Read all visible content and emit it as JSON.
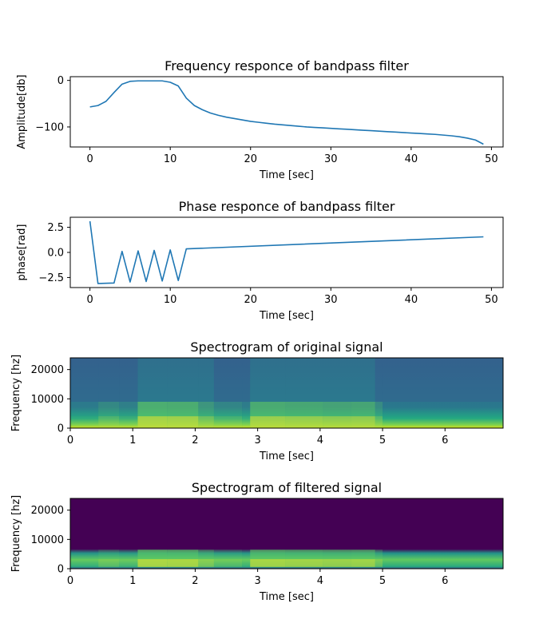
{
  "chart_data": [
    {
      "type": "line",
      "title": "Frequency responce of bandpass filter",
      "xlabel": "Time [sec]",
      "ylabel": "Amplitude[db]",
      "xlim": [
        -2.45,
        51.45
      ],
      "ylim": [
        -143,
        8
      ],
      "xticks": [
        0,
        10,
        20,
        30,
        40,
        50
      ],
      "yticks": [
        0,
        -100
      ],
      "ytick_labels": [
        "0",
        "−100"
      ],
      "grid": false,
      "color": "#1f77b4",
      "x": [
        0,
        1,
        2,
        3,
        4,
        5,
        6,
        7,
        8,
        9,
        10,
        11,
        12,
        13,
        14,
        15,
        16,
        17,
        18,
        19,
        20,
        21,
        22,
        23,
        24,
        25,
        26,
        27,
        28,
        29,
        30,
        31,
        32,
        33,
        34,
        35,
        36,
        37,
        38,
        39,
        40,
        41,
        42,
        43,
        44,
        45,
        46,
        47,
        48,
        49
      ],
      "y": [
        -57,
        -54,
        -45,
        -26,
        -8,
        -2,
        -1,
        -1,
        -1,
        -1,
        -4,
        -12,
        -38,
        -54,
        -63,
        -70,
        -75,
        -79,
        -82,
        -85,
        -88,
        -90,
        -92,
        -94,
        -95.5,
        -97,
        -98.5,
        -100,
        -101,
        -102,
        -103,
        -104,
        -105,
        -106,
        -107,
        -108,
        -109,
        -110,
        -111,
        -112,
        -113,
        -114,
        -115,
        -116,
        -117.5,
        -119,
        -121,
        -124,
        -128,
        -137
      ]
    },
    {
      "type": "line",
      "title": "Phase responce of bandpass filter",
      "xlabel": "Time [sec]",
      "ylabel": "phase[rad]",
      "xlim": [
        -2.45,
        51.45
      ],
      "ylim": [
        -3.5,
        3.5
      ],
      "xticks": [
        0,
        10,
        20,
        30,
        40,
        50
      ],
      "yticks": [
        2.5,
        0.0,
        -2.5
      ],
      "ytick_labels": [
        "2.5",
        "0.0",
        "−2.5"
      ],
      "grid": false,
      "color": "#1f77b4",
      "x": [
        0,
        1,
        3,
        4,
        5,
        6,
        7,
        8,
        9,
        10,
        11,
        12,
        49
      ],
      "y": [
        3.1,
        -3.1,
        -3.05,
        0.1,
        -2.95,
        0.15,
        -2.9,
        0.2,
        -2.85,
        0.25,
        -2.8,
        0.35,
        1.55
      ]
    },
    {
      "type": "heatmap",
      "title": "Spectrogram of original signal",
      "xlabel": "Time [sec]",
      "ylabel": "Frequency [hz]",
      "xlim": [
        0,
        6.93
      ],
      "ylim": [
        0,
        24000
      ],
      "xticks": [
        0,
        1,
        2,
        3,
        4,
        5,
        6
      ],
      "yticks": [
        0,
        10000,
        20000
      ],
      "colormap": "viridis",
      "segments": [
        [
          0.0,
          0.45
        ],
        [
          0.45,
          0.78
        ],
        [
          0.78,
          1.08
        ],
        [
          1.08,
          1.55
        ],
        [
          1.55,
          2.05
        ],
        [
          2.05,
          2.3
        ],
        [
          2.3,
          2.75
        ],
        [
          2.75,
          2.88
        ],
        [
          2.88,
          3.45
        ],
        [
          3.45,
          4.05
        ],
        [
          4.05,
          4.5
        ],
        [
          4.5,
          4.88
        ],
        [
          4.88,
          5.0
        ],
        [
          5.0,
          6.93
        ]
      ],
      "energy": [
        0.28,
        0.42,
        0.33,
        0.8,
        0.78,
        0.55,
        0.38,
        0.3,
        0.76,
        0.72,
        0.68,
        0.7,
        0.45,
        0.25
      ],
      "noise_floor": 0.24,
      "active_band_max_hz": 9000
    },
    {
      "type": "heatmap",
      "title": "Spectrogram of filtered signal",
      "xlabel": "Time [sec]",
      "ylabel": "Frequency [hz]",
      "xlim": [
        0,
        6.93
      ],
      "ylim": [
        0,
        24000
      ],
      "xticks": [
        0,
        1,
        2,
        3,
        4,
        5,
        6
      ],
      "yticks": [
        0,
        10000,
        20000
      ],
      "colormap": "viridis",
      "segments": [
        [
          0.0,
          0.45
        ],
        [
          0.45,
          0.78
        ],
        [
          0.78,
          1.08
        ],
        [
          1.08,
          1.55
        ],
        [
          1.55,
          2.05
        ],
        [
          2.05,
          2.3
        ],
        [
          2.3,
          2.75
        ],
        [
          2.75,
          2.88
        ],
        [
          2.88,
          3.45
        ],
        [
          3.45,
          4.05
        ],
        [
          4.05,
          4.5
        ],
        [
          4.5,
          4.88
        ],
        [
          4.88,
          5.0
        ],
        [
          5.0,
          6.93
        ]
      ],
      "energy": [
        0.28,
        0.42,
        0.33,
        0.8,
        0.78,
        0.55,
        0.38,
        0.3,
        0.76,
        0.72,
        0.68,
        0.7,
        0.45,
        0.25
      ],
      "noise_floor": 0.22,
      "pass_band_hz": [
        600,
        6500
      ]
    }
  ]
}
